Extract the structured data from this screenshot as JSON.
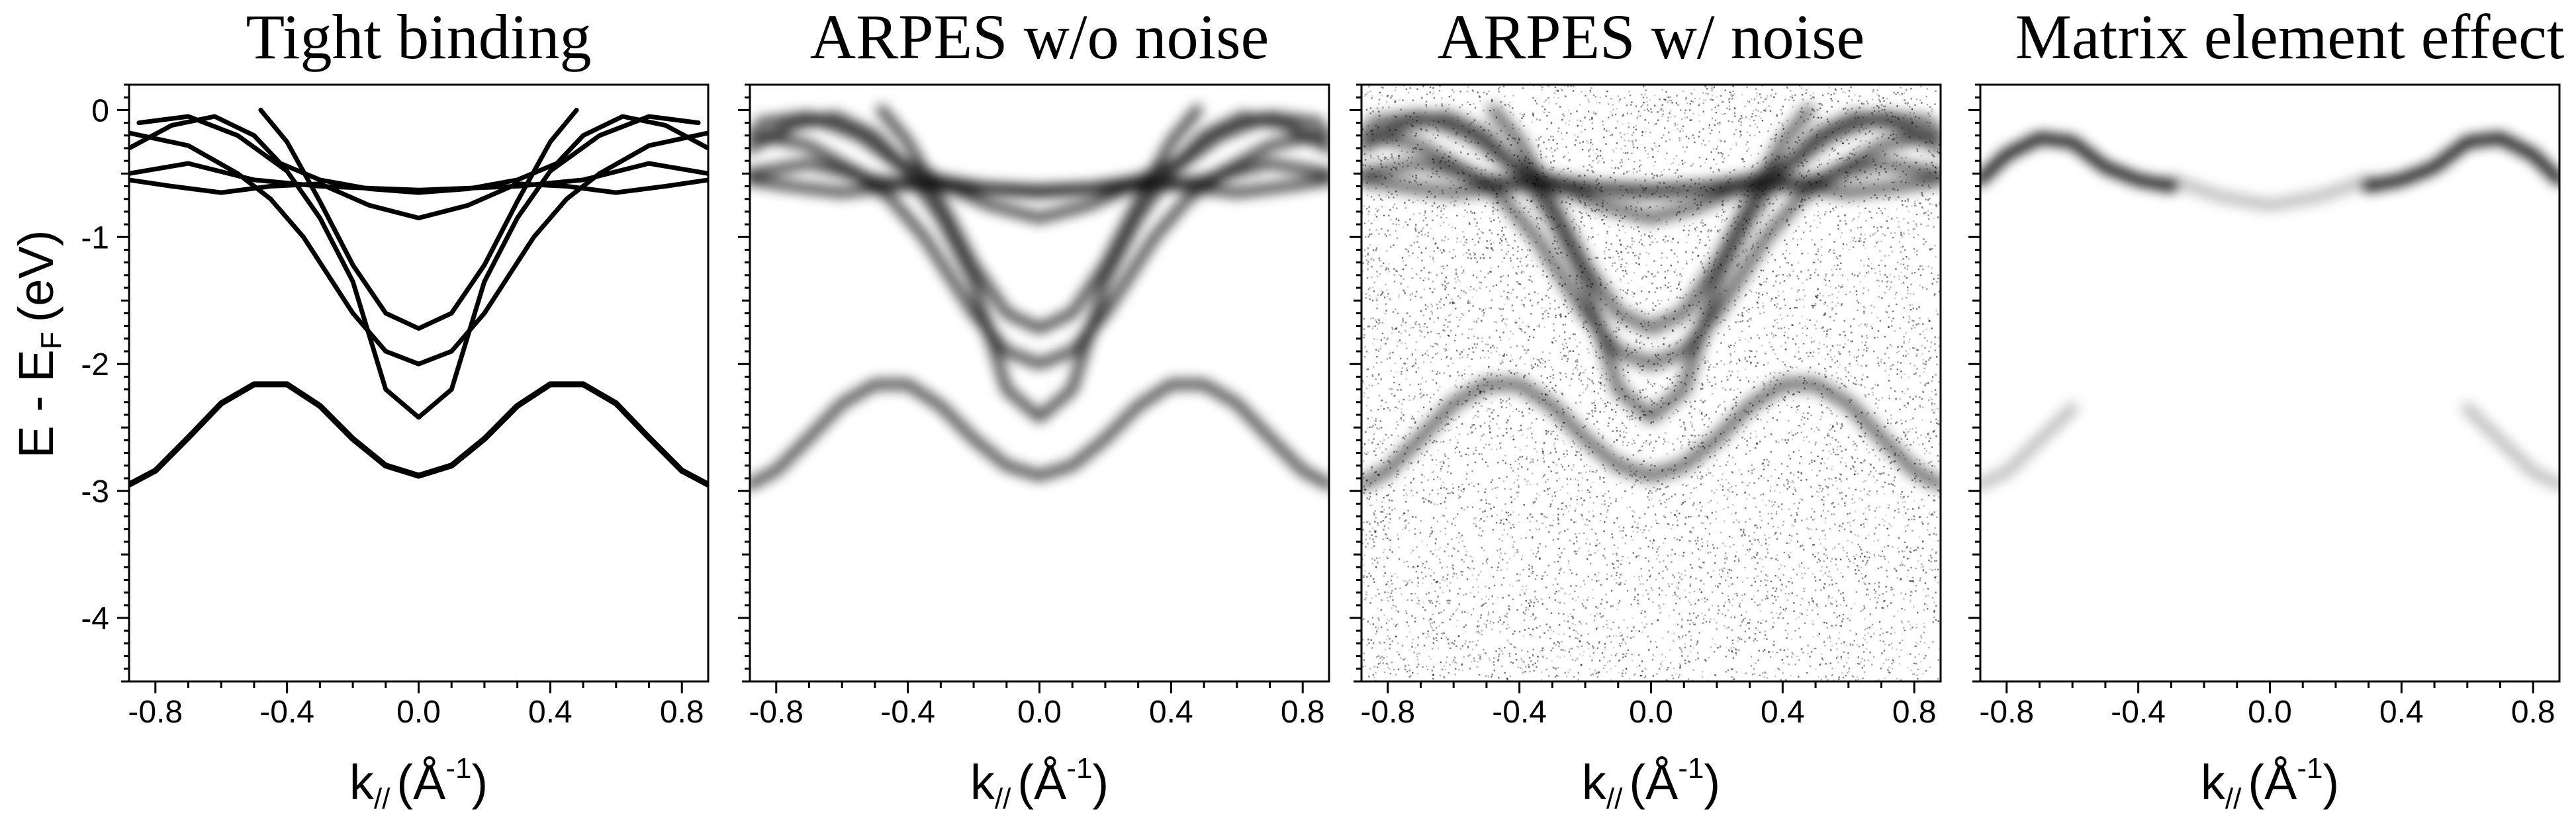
{
  "figure": {
    "y_axis": {
      "main": "E - E",
      "subscript": "F",
      "unit": "(eV)",
      "range": [
        -4.5,
        0.2
      ],
      "ticks": [
        0,
        -1,
        -2,
        -3,
        -4
      ]
    },
    "x_axis": {
      "main": "k",
      "subscript": "//",
      "unit_prefix": "(Å",
      "unit_sup": "-1",
      "unit_suffix": ")",
      "range": [
        -0.88,
        0.88
      ],
      "ticks": [
        -0.8,
        -0.4,
        0.0,
        0.4,
        0.8
      ],
      "tick_labels": [
        "-0.8",
        "-0.4",
        "0.0",
        "0.4",
        "0.8"
      ]
    }
  },
  "chart_data": [
    {
      "type": "line",
      "title": "Tight binding",
      "render": "lines",
      "series": [
        {
          "x": [
            -0.88,
            -0.8,
            -0.7,
            -0.6,
            -0.5,
            -0.4,
            -0.3,
            -0.2,
            -0.1,
            0.0,
            0.1,
            0.2,
            0.3,
            0.4,
            0.5,
            0.6,
            0.7,
            0.8,
            0.88
          ],
          "y": [
            -2.95,
            -2.84,
            -2.58,
            -2.31,
            -2.16,
            -2.16,
            -2.33,
            -2.59,
            -2.8,
            -2.88,
            -2.8,
            -2.59,
            -2.33,
            -2.16,
            -2.16,
            -2.31,
            -2.58,
            -2.84,
            -2.95
          ]
        },
        {
          "x": [
            -0.48,
            -0.4,
            -0.3,
            -0.2,
            -0.1,
            0.0,
            0.1,
            0.2,
            0.3,
            0.4,
            0.48
          ],
          "y": [
            0.0,
            -0.25,
            -0.72,
            -1.22,
            -1.6,
            -1.72,
            -1.6,
            -1.22,
            -0.72,
            -0.25,
            0.0
          ]
        },
        {
          "x": [
            -0.88,
            -0.7,
            -0.55,
            -0.45,
            -0.35,
            -0.2,
            -0.1,
            0.0,
            0.1,
            0.2,
            0.35,
            0.45,
            0.55,
            0.7,
            0.88
          ],
          "y": [
            -0.18,
            -0.28,
            -0.5,
            -0.7,
            -1.0,
            -1.6,
            -1.9,
            -2.0,
            -1.9,
            -1.6,
            -1.0,
            -0.7,
            -0.5,
            -0.28,
            -0.18
          ]
        },
        {
          "x": [
            -0.85,
            -0.7,
            -0.55,
            -0.4,
            -0.3,
            -0.2,
            -0.1,
            0.0,
            0.1,
            0.2,
            0.3,
            0.4,
            0.55,
            0.7,
            0.85
          ],
          "y": [
            -0.1,
            -0.05,
            -0.2,
            -0.48,
            -0.85,
            -1.35,
            -2.2,
            -2.42,
            -2.2,
            -1.35,
            -0.85,
            -0.48,
            -0.2,
            -0.05,
            -0.1
          ]
        },
        {
          "x": [
            -0.88,
            -0.7,
            -0.5,
            -0.3,
            -0.1,
            0.0,
            0.1,
            0.3,
            0.5,
            0.7,
            0.88
          ],
          "y": [
            -0.5,
            -0.42,
            -0.55,
            -0.6,
            -0.62,
            -0.63,
            -0.62,
            -0.6,
            -0.55,
            -0.42,
            -0.5
          ]
        },
        {
          "x": [
            -0.88,
            -0.75,
            -0.6,
            -0.45,
            -0.3,
            -0.15,
            0.0,
            0.15,
            0.3,
            0.45,
            0.6,
            0.75,
            0.88
          ],
          "y": [
            -0.55,
            -0.6,
            -0.65,
            -0.6,
            -0.58,
            -0.75,
            -0.85,
            -0.75,
            -0.58,
            -0.6,
            -0.65,
            -0.6,
            -0.55
          ]
        },
        {
          "x": [
            -0.88,
            -0.75,
            -0.62,
            -0.5,
            -0.42,
            -0.3,
            -0.15,
            0.0,
            0.15,
            0.3,
            0.42,
            0.5,
            0.62,
            0.75,
            0.88
          ],
          "y": [
            -0.3,
            -0.12,
            -0.05,
            -0.2,
            -0.42,
            -0.55,
            -0.62,
            -0.65,
            -0.62,
            -0.55,
            -0.42,
            -0.2,
            -0.05,
            -0.12,
            -0.3
          ]
        }
      ]
    },
    {
      "type": "heatmap",
      "title": "ARPES w/o noise",
      "render": "blur",
      "noise": false,
      "series_ref": "Tight binding"
    },
    {
      "type": "heatmap",
      "title": "ARPES w/ noise",
      "render": "blur",
      "noise": true,
      "series_ref": "Tight binding"
    },
    {
      "type": "heatmap",
      "title": "Matrix element effect",
      "render": "blur",
      "noise": false,
      "features": [
        {
          "x": [
            -0.88,
            -0.8,
            -0.7,
            -0.6,
            -0.5,
            -0.4,
            -0.3
          ],
          "y": [
            -0.55,
            -0.35,
            -0.22,
            -0.25,
            -0.45,
            -0.55,
            -0.6
          ],
          "strength": 0.9
        },
        {
          "x": [
            0.3,
            0.4,
            0.5,
            0.6,
            0.7,
            0.8,
            0.88
          ],
          "y": [
            -0.6,
            -0.55,
            -0.45,
            -0.25,
            -0.22,
            -0.35,
            -0.55
          ],
          "strength": 0.9
        },
        {
          "x": [
            -0.3,
            -0.15,
            0.0,
            0.15,
            0.3
          ],
          "y": [
            -0.55,
            -0.68,
            -0.75,
            -0.68,
            -0.55
          ],
          "strength": 0.25
        },
        {
          "x": [
            -0.88,
            -0.8,
            -0.7,
            -0.6
          ],
          "y": [
            -2.95,
            -2.85,
            -2.6,
            -2.35
          ],
          "strength": 0.25
        },
        {
          "x": [
            0.6,
            0.7,
            0.8,
            0.88
          ],
          "y": [
            -2.35,
            -2.6,
            -2.85,
            -2.95
          ],
          "strength": 0.25
        }
      ]
    }
  ]
}
